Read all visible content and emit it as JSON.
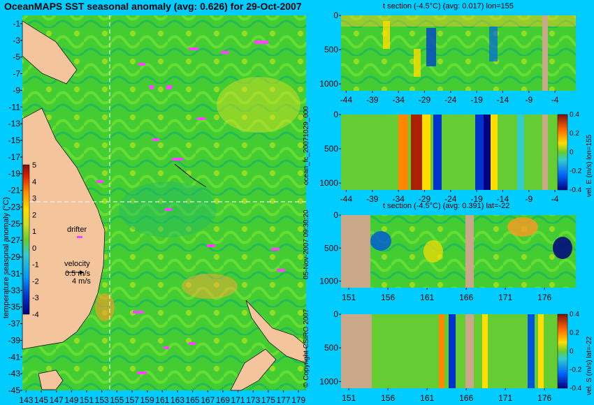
{
  "header": {
    "map_title": "OceanMAPS SST seasonal anomaly (avg: 0.626) for 29-Oct-2007",
    "panel1_title": "t section (-4.5°C) (avg: 0.017) lon=155",
    "panel3_title": "t section (-4.5°C) (avg: 0.391) lat=-22"
  },
  "side_labels": {
    "forecast_id": "ocean_fc_20071029_000",
    "run_time": "05-Nov-2007 09:30:20",
    "copyright": "© Copyright CSIRO 2007",
    "cbar_velE": "vel. E (m/s) lon=155",
    "cbar_velS": "vel. S (m/s) lat=-22"
  },
  "map_labels": {
    "cbar_title": "temperature seasonal anomaly (°C)",
    "drifter": "drifter",
    "velocity": "velocity",
    "speed_0": "0.5 m/s",
    "speed_1": "4 m/s"
  },
  "colors": {
    "background": "#00ccff",
    "land": "#f4c49c",
    "section_land": "#c8a888",
    "drifter": "#ff44ff",
    "ocean_base": "#44cc33",
    "scale": [
      "#000080",
      "#0033cc",
      "#0099ff",
      "#33cccc",
      "#66cc33",
      "#ccdd22",
      "#ffdd00",
      "#ff8800",
      "#dd2200",
      "#801010"
    ]
  },
  "chart_data": [
    {
      "type": "heatmap",
      "name": "SST seasonal anomaly map",
      "x_ticks": [
        "143",
        "145",
        "147",
        "149",
        "151",
        "153",
        "155",
        "157",
        "159",
        "161",
        "163",
        "165",
        "167",
        "169",
        "171",
        "173",
        "175",
        "177",
        "179"
      ],
      "y_ticks": [
        "-1",
        "-3",
        "-5",
        "-7",
        "-9",
        "-11",
        "-13",
        "-15",
        "-17",
        "-19",
        "-21",
        "-23",
        "-25",
        "-27",
        "-29",
        "-31",
        "-33",
        "-35",
        "-37",
        "-39",
        "-41",
        "-43",
        "-45"
      ],
      "xlim": [
        142.5,
        180
      ],
      "ylim": [
        -45,
        0
      ],
      "crosshair": {
        "lon": 155,
        "lat": -22
      },
      "colorbar": {
        "ticks": [
          "5",
          "4",
          "3",
          "2",
          "1",
          "0",
          "-1",
          "-2",
          "-3",
          "-4"
        ],
        "range": [
          -4,
          5
        ]
      }
    },
    {
      "type": "heatmap",
      "name": "t section lon=155",
      "x_ticks": [
        "-44",
        "-39",
        "-34",
        "-29",
        "-24",
        "-19",
        "-14",
        "-9",
        "-4"
      ],
      "y_ticks": [
        "0",
        "500",
        "1000"
      ],
      "xlim": [
        -45,
        0
      ],
      "ylim": [
        1100,
        0
      ]
    },
    {
      "type": "heatmap",
      "name": "vel E lon=155",
      "x_ticks": [
        "-44",
        "-39",
        "-34",
        "-29",
        "-24",
        "-19",
        "-14",
        "-9",
        "-4"
      ],
      "y_ticks": [
        "0",
        "500",
        "1000"
      ],
      "xlim": [
        -45,
        0
      ],
      "ylim": [
        1100,
        0
      ],
      "colorbar": {
        "ticks": [
          "0.4",
          "0.2",
          "0",
          "-0.2",
          "-0.4"
        ],
        "range": [
          -0.4,
          0.4
        ]
      }
    },
    {
      "type": "heatmap",
      "name": "t section lat=-22",
      "x_ticks": [
        "151",
        "156",
        "161",
        "166",
        "171",
        "176"
      ],
      "y_ticks": [
        "0",
        "500",
        "1000"
      ],
      "xlim": [
        150,
        180
      ],
      "ylim": [
        1100,
        0
      ]
    },
    {
      "type": "heatmap",
      "name": "vel S lat=-22",
      "x_ticks": [
        "151",
        "156",
        "161",
        "166",
        "171",
        "176"
      ],
      "y_ticks": [
        "0",
        "500",
        "1000"
      ],
      "xlim": [
        150,
        180
      ],
      "ylim": [
        1100,
        0
      ],
      "colorbar": {
        "ticks": [
          "0.4",
          "0.2",
          "0",
          "-0.2",
          "-0.4"
        ],
        "range": [
          -0.4,
          0.4
        ]
      }
    }
  ]
}
